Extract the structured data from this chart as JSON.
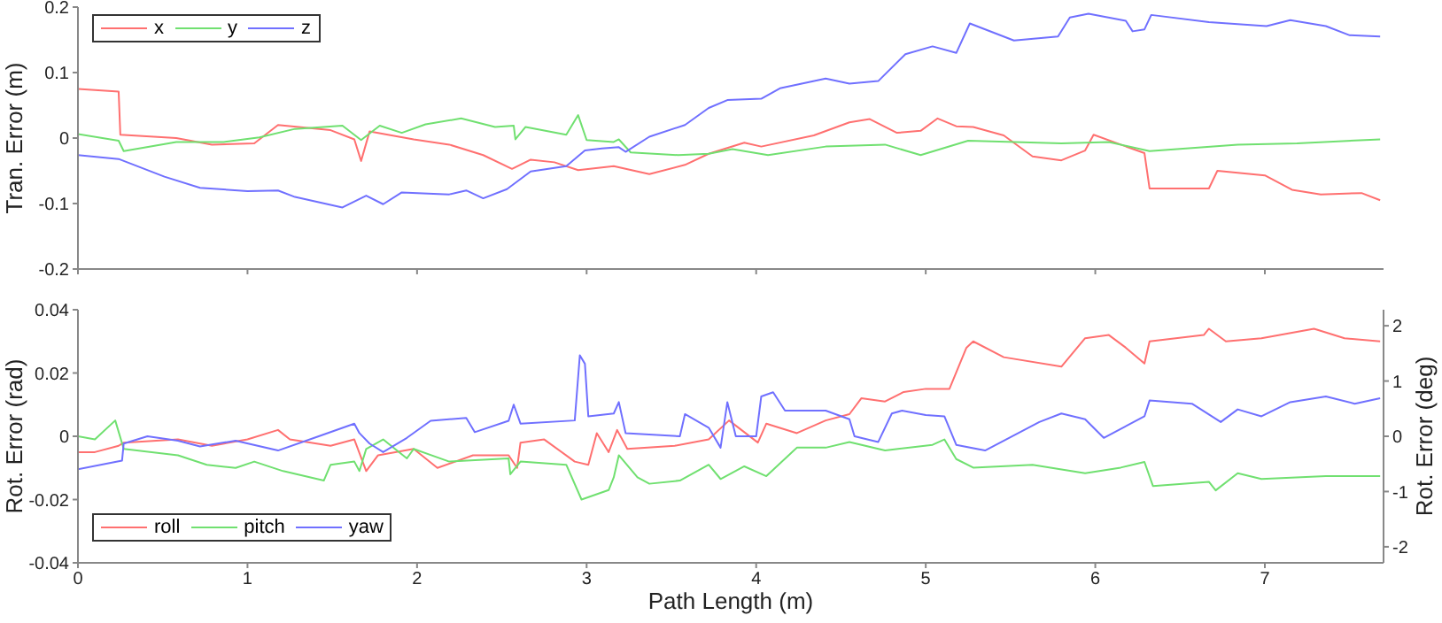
{
  "chart_data": [
    {
      "type": "line",
      "ylabel": "Tran. Error (m)",
      "xlim": [
        0,
        7.7
      ],
      "xticks": [
        0,
        1,
        2,
        3,
        4,
        5,
        6,
        7
      ],
      "ylim": [
        -0.2,
        0.2
      ],
      "yticks": [
        -0.2,
        -0.1,
        0,
        0.1,
        0.2
      ],
      "tick_labels": "y",
      "legend": "top left",
      "grid": false,
      "marker": "none",
      "line_style": "solid",
      "series": [
        {
          "name": "x",
          "color": "#ff7070",
          "x": [
            0,
            0.24,
            0.25,
            0.58,
            0.79,
            1.04,
            1.18,
            1.49,
            1.63,
            1.67,
            1.72,
            1.98,
            2.19,
            2.39,
            2.56,
            2.67,
            2.81,
            2.95,
            3.16,
            3.37,
            3.58,
            3.72,
            3.93,
            4.03,
            4.34,
            4.55,
            4.67,
            4.83,
            4.97,
            5.07,
            5.18,
            5.28,
            5.46,
            5.63,
            5.8,
            5.94,
            5.99,
            6.15,
            6.29,
            6.32,
            6.67,
            6.72,
            7.0,
            7.16,
            7.33,
            7.57,
            7.68
          ],
          "values": [
            0.075,
            0.071,
            0.005,
            0.0,
            -0.01,
            -0.008,
            0.02,
            0.012,
            -0.002,
            -0.035,
            0.01,
            -0.002,
            -0.01,
            -0.026,
            -0.047,
            -0.033,
            -0.037,
            -0.049,
            -0.043,
            -0.055,
            -0.041,
            -0.024,
            -0.007,
            -0.013,
            0.004,
            0.024,
            0.029,
            0.008,
            0.011,
            0.03,
            0.018,
            0.017,
            0.004,
            -0.028,
            -0.034,
            -0.019,
            0.005,
            -0.01,
            -0.023,
            -0.077,
            -0.077,
            -0.05,
            -0.057,
            -0.079,
            -0.086,
            -0.084,
            -0.095
          ]
        },
        {
          "name": "y",
          "color": "#70e070",
          "x": [
            0,
            0.24,
            0.27,
            0.58,
            0.86,
            1.07,
            1.28,
            1.56,
            1.67,
            1.78,
            1.91,
            2.05,
            2.26,
            2.46,
            2.57,
            2.58,
            2.64,
            2.88,
            2.95,
            3.0,
            3.16,
            3.19,
            3.26,
            3.54,
            3.72,
            3.86,
            4.07,
            4.41,
            4.76,
            4.97,
            5.25,
            5.8,
            6.08,
            6.32,
            6.84,
            7.19,
            7.68
          ],
          "values": [
            0.006,
            -0.004,
            -0.02,
            -0.006,
            -0.006,
            0.001,
            0.014,
            0.019,
            -0.003,
            0.019,
            0.008,
            0.021,
            0.03,
            0.017,
            0.019,
            -0.002,
            0.017,
            0.005,
            0.035,
            -0.003,
            -0.006,
            -0.002,
            -0.022,
            -0.026,
            -0.024,
            -0.017,
            -0.026,
            -0.013,
            -0.01,
            -0.026,
            -0.004,
            -0.008,
            -0.006,
            -0.02,
            -0.01,
            -0.008,
            -0.002
          ]
        },
        {
          "name": "z",
          "color": "#7070ff",
          "x": [
            0,
            0.24,
            0.51,
            0.72,
            1.0,
            1.18,
            1.28,
            1.56,
            1.7,
            1.8,
            1.91,
            2.19,
            2.29,
            2.39,
            2.53,
            2.67,
            2.88,
            2.99,
            3.09,
            3.19,
            3.23,
            3.37,
            3.58,
            3.72,
            3.83,
            4.03,
            4.14,
            4.41,
            4.55,
            4.72,
            4.88,
            5.04,
            5.18,
            5.26,
            5.52,
            5.78,
            5.85,
            5.96,
            6.18,
            6.22,
            6.29,
            6.33,
            6.67,
            7.01,
            7.15,
            7.36,
            7.5,
            7.68
          ],
          "values": [
            -0.026,
            -0.032,
            -0.059,
            -0.076,
            -0.081,
            -0.08,
            -0.09,
            -0.106,
            -0.088,
            -0.101,
            -0.083,
            -0.086,
            -0.08,
            -0.092,
            -0.078,
            -0.051,
            -0.043,
            -0.019,
            -0.016,
            -0.014,
            -0.021,
            0.002,
            0.02,
            0.046,
            0.058,
            0.06,
            0.076,
            0.091,
            0.083,
            0.087,
            0.128,
            0.14,
            0.13,
            0.175,
            0.149,
            0.155,
            0.184,
            0.19,
            0.179,
            0.163,
            0.166,
            0.188,
            0.177,
            0.171,
            0.18,
            0.171,
            0.157,
            0.155
          ]
        }
      ]
    },
    {
      "type": "line",
      "xlabel": "Path Length (m)",
      "ylabel": "Rot. Error (rad)",
      "y2label": "Rot. Error (deg)",
      "xlim": [
        0,
        7.7
      ],
      "xticks": [
        0,
        1,
        2,
        3,
        4,
        5,
        6,
        7
      ],
      "ylim": [
        -0.04,
        0.04
      ],
      "yticks": [
        -0.04,
        -0.02,
        0,
        0.02,
        0.04
      ],
      "y2lim": [
        -2.29,
        2.29
      ],
      "y2ticks": [
        -2,
        -1,
        0,
        1,
        2
      ],
      "legend": "bottom left",
      "grid": false,
      "marker": "none",
      "line_style": "solid",
      "series": [
        {
          "name": "roll",
          "color": "#ff7070",
          "x": [
            0,
            0.1,
            0.24,
            0.27,
            0.59,
            0.79,
            1.0,
            1.18,
            1.25,
            1.49,
            1.63,
            1.7,
            1.77,
            1.98,
            2.12,
            2.33,
            2.54,
            2.59,
            2.61,
            2.75,
            2.93,
            3.01,
            3.06,
            3.13,
            3.18,
            3.24,
            3.52,
            3.72,
            3.84,
            4.01,
            4.06,
            4.24,
            4.41,
            4.55,
            4.62,
            4.76,
            4.87,
            5.0,
            5.14,
            5.24,
            5.28,
            5.46,
            5.8,
            5.94,
            6.08,
            6.18,
            6.29,
            6.32,
            6.64,
            6.67,
            6.77,
            6.98,
            7.29,
            7.47,
            7.68
          ],
          "values": [
            -0.005,
            -0.005,
            -0.003,
            -0.002,
            -0.001,
            -0.003,
            -0.001,
            0.002,
            -0.001,
            -0.003,
            -0.001,
            -0.011,
            -0.006,
            -0.004,
            -0.01,
            -0.006,
            -0.006,
            -0.01,
            -0.002,
            -0.001,
            -0.008,
            -0.009,
            0.001,
            -0.005,
            0.002,
            -0.004,
            -0.003,
            -0.001,
            0.005,
            -0.002,
            0.004,
            0.001,
            0.005,
            0.007,
            0.012,
            0.011,
            0.014,
            0.015,
            0.015,
            0.028,
            0.03,
            0.025,
            0.022,
            0.031,
            0.032,
            0.028,
            0.023,
            0.03,
            0.032,
            0.034,
            0.03,
            0.031,
            0.034,
            0.031,
            0.03
          ]
        },
        {
          "name": "pitch",
          "color": "#70e070",
          "x": [
            0,
            0.1,
            0.22,
            0.27,
            0.59,
            0.76,
            0.93,
            1.04,
            1.21,
            1.45,
            1.49,
            1.63,
            1.66,
            1.7,
            1.8,
            1.94,
            1.98,
            2.19,
            2.54,
            2.55,
            2.61,
            2.88,
            2.97,
            3.13,
            3.16,
            3.19,
            3.3,
            3.37,
            3.55,
            3.72,
            3.79,
            3.93,
            4.06,
            4.24,
            4.41,
            4.55,
            4.76,
            5.04,
            5.11,
            5.18,
            5.28,
            5.63,
            5.94,
            6.15,
            6.29,
            6.34,
            6.67,
            6.71,
            6.84,
            6.98,
            7.36,
            7.68
          ],
          "values": [
            0.0,
            -0.001,
            0.005,
            -0.004,
            -0.006,
            -0.009,
            -0.01,
            -0.008,
            -0.011,
            -0.014,
            -0.009,
            -0.008,
            -0.011,
            -0.004,
            -0.001,
            -0.007,
            -0.004,
            -0.008,
            -0.007,
            -0.012,
            -0.008,
            -0.009,
            -0.02,
            -0.017,
            -0.013,
            -0.006,
            -0.013,
            -0.015,
            -0.014,
            -0.009,
            -0.0135,
            -0.0095,
            -0.0126,
            -0.0036,
            -0.0036,
            -0.0018,
            -0.0045,
            -0.0027,
            -0.001,
            -0.0072,
            -0.0099,
            -0.009,
            -0.0117,
            -0.0099,
            -0.0081,
            -0.0157,
            -0.0144,
            -0.0171,
            -0.0117,
            -0.0135,
            -0.0126,
            -0.0126
          ]
        },
        {
          "name": "yaw",
          "color": "#7070ff",
          "x": [
            0,
            0.26,
            0.27,
            0.41,
            0.59,
            0.72,
            0.93,
            1.18,
            1.42,
            1.63,
            1.66,
            1.72,
            1.8,
            1.94,
            2.08,
            2.29,
            2.34,
            2.54,
            2.57,
            2.61,
            2.93,
            2.96,
            2.99,
            3.01,
            3.16,
            3.19,
            3.23,
            3.55,
            3.58,
            3.72,
            3.79,
            3.83,
            3.88,
            4.0,
            4.03,
            4.1,
            4.17,
            4.41,
            4.55,
            4.58,
            4.72,
            4.8,
            4.86,
            5.0,
            5.11,
            5.18,
            5.35,
            5.67,
            5.8,
            5.94,
            6.05,
            6.29,
            6.32,
            6.57,
            6.74,
            6.84,
            6.98,
            7.15,
            7.36,
            7.53,
            7.68
          ],
          "values": [
            -0.0104,
            -0.0077,
            -0.0023,
            0.0,
            -0.0014,
            -0.0032,
            -0.0014,
            -0.0045,
            0.0,
            0.004,
            0.001,
            -0.0023,
            -0.005,
            -0.0005,
            0.0049,
            0.0058,
            0.0013,
            0.0049,
            0.01,
            0.004,
            0.005,
            0.0256,
            0.0229,
            0.0063,
            0.0072,
            0.0108,
            0.001,
            0.0,
            0.007,
            0.0027,
            -0.0036,
            0.0108,
            0.0,
            0.0,
            0.0126,
            0.0139,
            0.0081,
            0.0081,
            0.0054,
            0.0,
            -0.0018,
            0.0072,
            0.0081,
            0.0067,
            0.0063,
            -0.0027,
            -0.0045,
            0.0045,
            0.0072,
            0.0054,
            -0.0005,
            0.0063,
            0.0113,
            0.0103,
            0.0045,
            0.0085,
            0.0063,
            0.0108,
            0.0126,
            0.0103,
            0.012
          ]
        }
      ]
    }
  ]
}
